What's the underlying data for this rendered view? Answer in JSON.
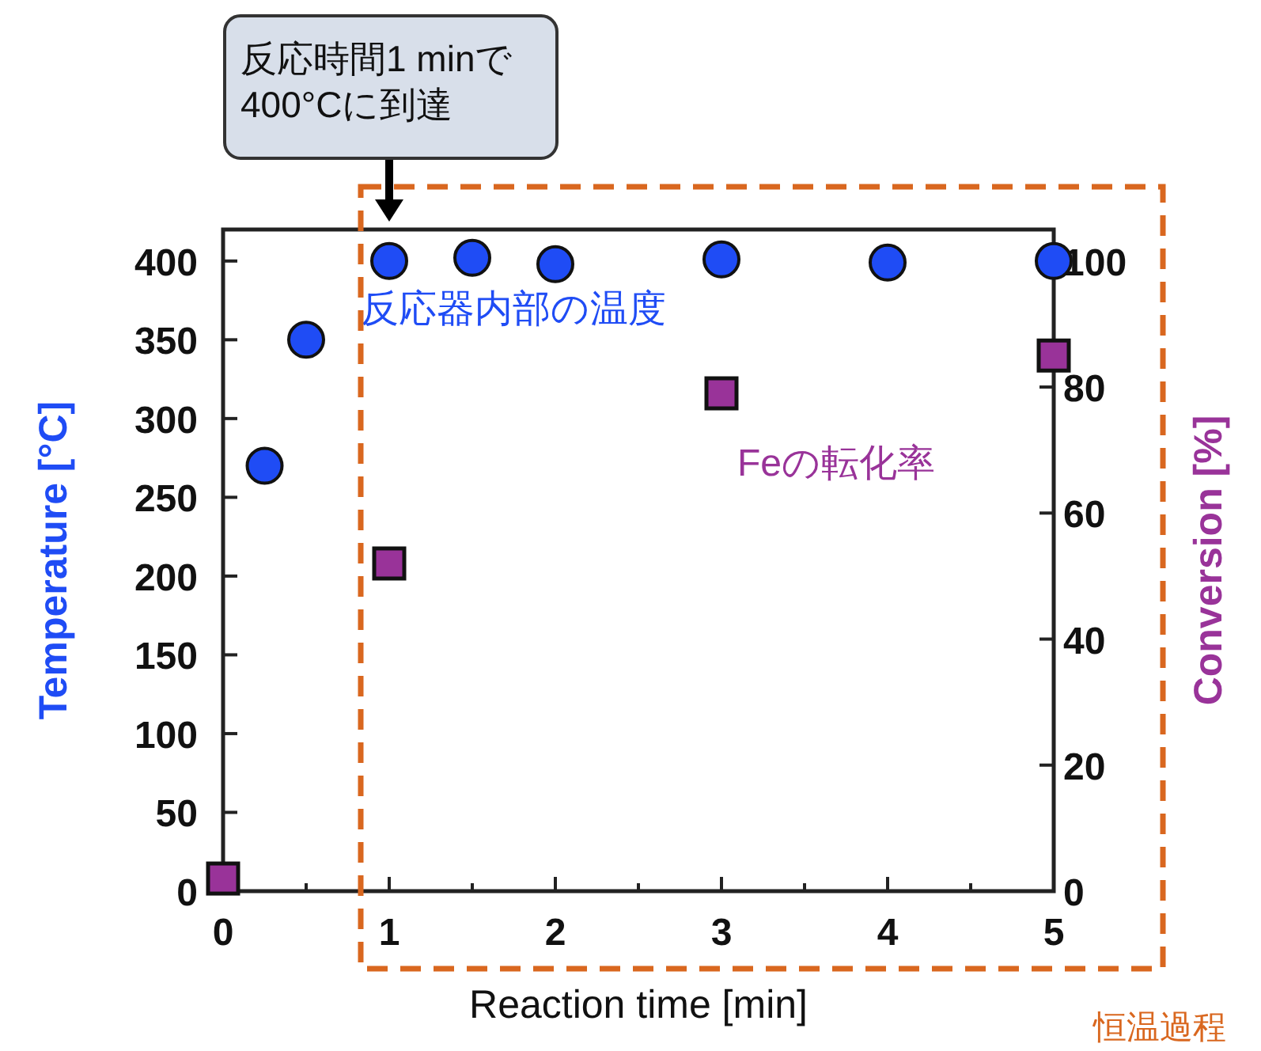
{
  "chart_data": {
    "type": "scatter",
    "xlabel": "Reaction time [min]",
    "ylabel": "Temperature [°C]",
    "y2label": "Conversion [%]",
    "xlim": [
      0,
      5
    ],
    "ylim": [
      0,
      420
    ],
    "y2lim": [
      0,
      105
    ],
    "xticks": [
      0,
      {
        "value": 0.5,
        "label": null
      },
      1,
      {
        "value": 1.5,
        "label": null
      },
      2,
      {
        "value": 2.5,
        "label": null
      },
      3,
      {
        "value": 3.5,
        "label": null
      },
      4,
      {
        "value": 4.5,
        "label": null
      },
      5
    ],
    "yticks": [
      0,
      50,
      100,
      150,
      200,
      250,
      300,
      350,
      400
    ],
    "y2ticks": [
      0,
      20,
      40,
      60,
      80,
      100
    ],
    "grid": false,
    "legend": false,
    "series": [
      {
        "name": "反応器内部の温度",
        "color": "#1f4cf5",
        "marker": "circle",
        "x": [
          0.25,
          0.5,
          1,
          1.5,
          2,
          3,
          4,
          5
        ],
        "values": [
          270,
          350,
          400,
          402,
          398,
          401,
          399,
          400
        ]
      },
      {
        "name": "Feの転化率",
        "color": "#993399",
        "marker": "square",
        "axis": "y2",
        "x": [
          0,
          1,
          3,
          5
        ],
        "values": [
          2,
          52,
          79,
          85
        ]
      }
    ],
    "annotations": [
      "反応時間1 minで\n400°Cに到達",
      "恒温過程"
    ]
  }
}
